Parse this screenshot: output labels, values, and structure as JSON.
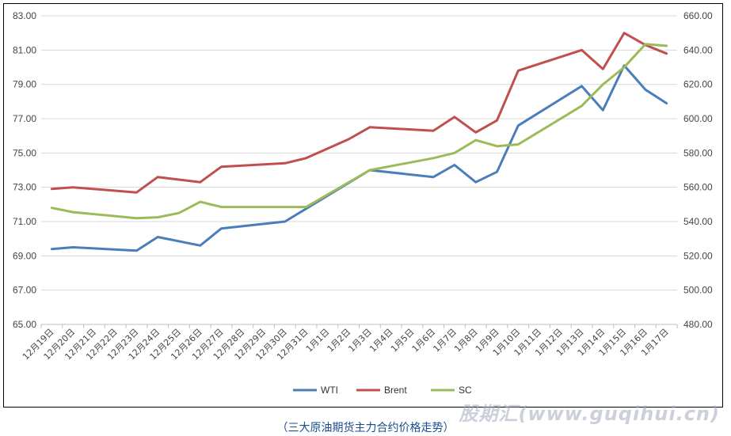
{
  "chart_data": {
    "type": "line",
    "categories": [
      "12月19日",
      "12月20日",
      "12月21日",
      "12月22日",
      "12月23日",
      "12月24日",
      "12月25日",
      "12月26日",
      "12月27日",
      "12月28日",
      "12月29日",
      "12月30日",
      "12月31日",
      "1月1日",
      "1月2日",
      "1月3日",
      "1月4日",
      "1月5日",
      "1月6日",
      "1月7日",
      "1月8日",
      "1月9日",
      "1月10日",
      "1月11日",
      "1月12日",
      "1月13日",
      "1月14日",
      "1月15日",
      "1月16日",
      "1月17日"
    ],
    "left_axis": {
      "ylim": [
        65,
        83
      ],
      "ticks": [
        "65.00",
        "67.00",
        "69.00",
        "71.00",
        "73.00",
        "75.00",
        "77.00",
        "79.00",
        "81.00",
        "83.00"
      ]
    },
    "right_axis": {
      "ylim": [
        480,
        660
      ],
      "ticks": [
        "480.00",
        "500.00",
        "520.00",
        "540.00",
        "560.00",
        "580.00",
        "600.00",
        "620.00",
        "640.00",
        "660.00"
      ]
    },
    "series": [
      {
        "name": "WTI",
        "axis": "left",
        "color": "#4a7ebb",
        "points": [
          [
            0,
            69.4
          ],
          [
            1,
            69.5
          ],
          [
            4,
            69.3
          ],
          [
            5,
            70.1
          ],
          [
            7,
            69.6
          ],
          [
            8,
            70.6
          ],
          [
            11,
            71.0
          ],
          [
            15,
            74.0
          ],
          [
            18,
            73.6
          ],
          [
            19,
            74.3
          ],
          [
            20,
            73.3
          ],
          [
            21,
            73.9
          ],
          [
            22,
            76.6
          ],
          [
            25,
            78.9
          ],
          [
            26,
            77.5
          ],
          [
            27,
            80.1
          ],
          [
            28,
            78.7
          ],
          [
            29,
            77.9
          ]
        ]
      },
      {
        "name": "Brent",
        "axis": "left",
        "color": "#c0504d",
        "points": [
          [
            0,
            72.9
          ],
          [
            1,
            73.0
          ],
          [
            4,
            72.7
          ],
          [
            5,
            73.6
          ],
          [
            7,
            73.3
          ],
          [
            8,
            74.2
          ],
          [
            11,
            74.4
          ],
          [
            12,
            74.7
          ],
          [
            14,
            75.8
          ],
          [
            15,
            76.5
          ],
          [
            18,
            76.3
          ],
          [
            19,
            77.1
          ],
          [
            20,
            76.2
          ],
          [
            21,
            76.9
          ],
          [
            22,
            79.8
          ],
          [
            25,
            81.0
          ],
          [
            26,
            79.9
          ],
          [
            27,
            82.0
          ],
          [
            28,
            81.3
          ],
          [
            29,
            80.8
          ]
        ]
      },
      {
        "name": "SC",
        "axis": "right",
        "color": "#9bbb59",
        "points": [
          [
            0,
            548
          ],
          [
            1,
            545.5
          ],
          [
            4,
            542
          ],
          [
            5,
            542.5
          ],
          [
            6,
            545
          ],
          [
            7,
            551.5
          ],
          [
            8,
            548.5
          ],
          [
            12,
            548.5
          ],
          [
            15,
            570
          ],
          [
            18,
            577
          ],
          [
            19,
            580
          ],
          [
            20,
            587.5
          ],
          [
            21,
            584
          ],
          [
            22,
            585
          ],
          [
            25,
            607.5
          ],
          [
            26,
            620
          ],
          [
            27,
            630
          ],
          [
            28,
            643.5
          ],
          [
            29,
            642.5
          ]
        ]
      }
    ]
  },
  "caption": "（三大原油期货主力合约价格走势）",
  "watermark": "股期汇(www.guqihui.cn)"
}
